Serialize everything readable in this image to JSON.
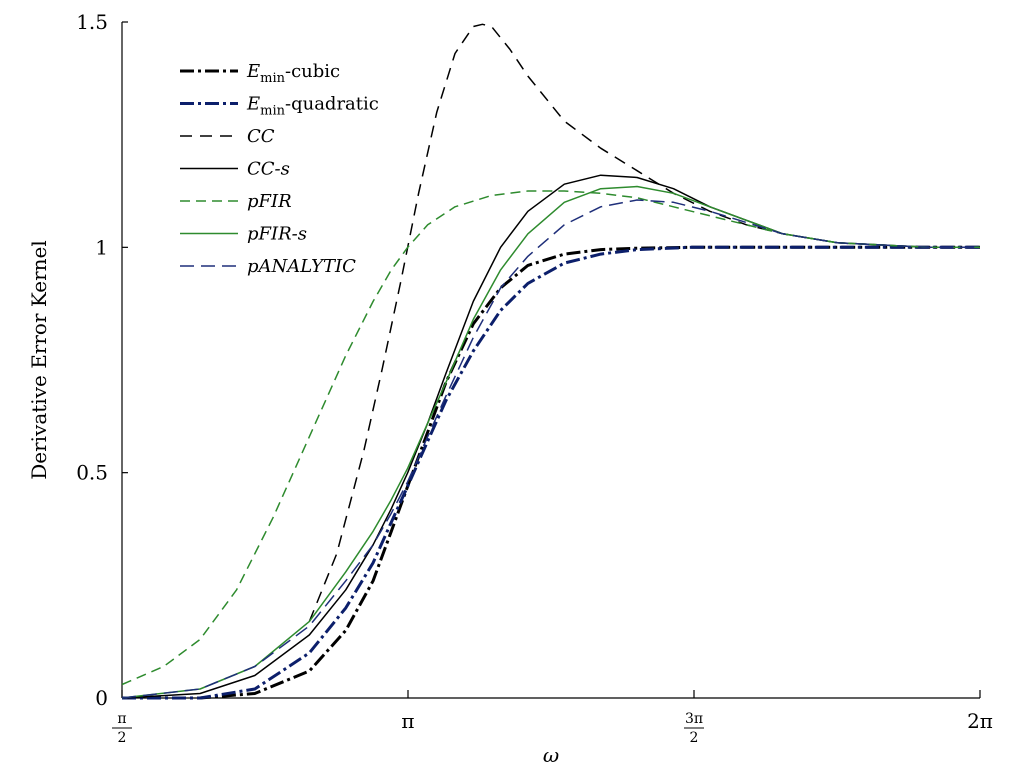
{
  "chart_data": {
    "type": "line",
    "xlabel": "ω",
    "ylabel": "Derivative Error Kernel",
    "xlim": [
      1.5708,
      6.2832
    ],
    "ylim": [
      0,
      1.5
    ],
    "grid": false,
    "legend_position": "top-left",
    "x_ticks": [
      {
        "value": 1.5708,
        "num": "π",
        "den": "2"
      },
      {
        "value": 3.1416,
        "label": "π"
      },
      {
        "value": 4.7124,
        "num": "3π",
        "den": "2"
      },
      {
        "value": 6.2832,
        "label": "2π"
      }
    ],
    "y_ticks": [
      {
        "value": 0,
        "label": "0"
      },
      {
        "value": 0.5,
        "label": "0.5"
      },
      {
        "value": 1,
        "label": "1"
      },
      {
        "value": 1.5,
        "label": "1.5"
      }
    ],
    "series": [
      {
        "name": "Emin-cubic",
        "legend": {
          "main": "E",
          "sub": "min",
          "suffix": "-cubic",
          "italic": false
        },
        "color": "#000000",
        "dash": "14,4,3,4",
        "width": 3,
        "x": [
          1.5708,
          2.0,
          2.3,
          2.6,
          2.8,
          2.95,
          3.05,
          3.14,
          3.25,
          3.35,
          3.5,
          3.65,
          3.8,
          4.0,
          4.2,
          4.4,
          4.7,
          5.0,
          5.5,
          6.0,
          6.2832
        ],
        "y": [
          0,
          0.0,
          0.01,
          0.06,
          0.15,
          0.26,
          0.37,
          0.47,
          0.59,
          0.7,
          0.83,
          0.91,
          0.96,
          0.985,
          0.995,
          0.998,
          1.0,
          1.0,
          1.0,
          1.0,
          1.0
        ]
      },
      {
        "name": "Emin-quadratic",
        "legend": {
          "main": "E",
          "sub": "min",
          "suffix": "-quadratic",
          "italic": false
        },
        "color": "#0c1f6b",
        "dash": "14,4,3,4",
        "width": 3,
        "x": [
          1.5708,
          2.0,
          2.3,
          2.6,
          2.8,
          2.95,
          3.05,
          3.14,
          3.25,
          3.35,
          3.5,
          3.65,
          3.8,
          4.0,
          4.2,
          4.4,
          4.7,
          5.0,
          5.5,
          6.0,
          6.2832
        ],
        "y": [
          0,
          0.0,
          0.02,
          0.1,
          0.2,
          0.3,
          0.39,
          0.47,
          0.57,
          0.66,
          0.77,
          0.86,
          0.92,
          0.965,
          0.985,
          0.995,
          1.0,
          1.0,
          1.0,
          1.0,
          1.0
        ]
      },
      {
        "name": "CC",
        "legend": {
          "main": "CC",
          "italic": true
        },
        "color": "#000000",
        "dash": "12,8",
        "width": 1.5,
        "x": [
          2.6,
          2.75,
          2.9,
          3.0,
          3.1,
          3.2,
          3.3,
          3.4,
          3.5,
          3.55,
          3.6,
          3.7,
          3.8,
          4.0,
          4.2,
          4.4,
          4.6,
          4.8,
          5.0,
          5.2,
          5.5,
          6.0,
          6.2832
        ],
        "y": [
          0.17,
          0.32,
          0.55,
          0.73,
          0.92,
          1.12,
          1.3,
          1.43,
          1.49,
          1.495,
          1.49,
          1.44,
          1.38,
          1.28,
          1.22,
          1.17,
          1.12,
          1.08,
          1.05,
          1.03,
          1.01,
          1.0,
          1.0
        ]
      },
      {
        "name": "CC-s",
        "legend": {
          "main": "CC-s",
          "italic": true
        },
        "color": "#000000",
        "dash": "",
        "width": 1.5,
        "x": [
          1.5708,
          2.0,
          2.3,
          2.6,
          2.8,
          2.95,
          3.05,
          3.14,
          3.25,
          3.35,
          3.5,
          3.65,
          3.8,
          4.0,
          4.2,
          4.4,
          4.6,
          4.8,
          5.0,
          5.2,
          5.5,
          6.0,
          6.2832
        ],
        "y": [
          0,
          0.01,
          0.05,
          0.14,
          0.24,
          0.34,
          0.42,
          0.5,
          0.61,
          0.72,
          0.88,
          1.0,
          1.08,
          1.14,
          1.16,
          1.155,
          1.13,
          1.09,
          1.06,
          1.03,
          1.01,
          1.0,
          1.0
        ]
      },
      {
        "name": "pFIR",
        "legend": {
          "main": "pFIR",
          "italic": true
        },
        "color": "#2e8b2e",
        "dash": "10,6",
        "width": 1.5,
        "x": [
          1.5708,
          1.8,
          2.0,
          2.2,
          2.4,
          2.6,
          2.8,
          2.95,
          3.05,
          3.14,
          3.25,
          3.4,
          3.6,
          3.8,
          4.0,
          4.2,
          4.4,
          4.6,
          4.8,
          5.0,
          5.2,
          5.5,
          6.0,
          6.2832
        ],
        "y": [
          0.03,
          0.07,
          0.13,
          0.24,
          0.4,
          0.58,
          0.76,
          0.88,
          0.95,
          1.0,
          1.05,
          1.09,
          1.115,
          1.125,
          1.125,
          1.12,
          1.11,
          1.09,
          1.07,
          1.05,
          1.03,
          1.01,
          1.0,
          1.0
        ]
      },
      {
        "name": "pFIR-s",
        "legend": {
          "main": "pFIR-s",
          "italic": true
        },
        "color": "#2e8b2e",
        "dash": "",
        "width": 1.5,
        "x": [
          1.5708,
          2.0,
          2.3,
          2.6,
          2.8,
          2.95,
          3.05,
          3.14,
          3.25,
          3.35,
          3.5,
          3.65,
          3.8,
          4.0,
          4.2,
          4.4,
          4.6,
          4.8,
          5.0,
          5.2,
          5.5,
          6.0,
          6.2832
        ],
        "y": [
          0,
          0.02,
          0.07,
          0.17,
          0.28,
          0.37,
          0.44,
          0.51,
          0.61,
          0.7,
          0.84,
          0.95,
          1.03,
          1.1,
          1.13,
          1.135,
          1.12,
          1.09,
          1.06,
          1.03,
          1.01,
          1.0,
          1.0
        ]
      },
      {
        "name": "pANALYTIC",
        "legend": {
          "main": "pANALYTIC",
          "italic": true
        },
        "color": "#1f2f7a",
        "dash": "14,7",
        "width": 1.5,
        "x": [
          1.5708,
          2.0,
          2.3,
          2.6,
          2.8,
          2.95,
          3.05,
          3.14,
          3.25,
          3.35,
          3.5,
          3.65,
          3.8,
          4.0,
          4.2,
          4.4,
          4.6,
          4.8,
          5.0,
          5.2,
          5.5,
          6.0,
          6.2832
        ],
        "y": [
          0,
          0.02,
          0.07,
          0.16,
          0.26,
          0.34,
          0.41,
          0.48,
          0.58,
          0.67,
          0.8,
          0.91,
          0.98,
          1.05,
          1.09,
          1.105,
          1.1,
          1.08,
          1.055,
          1.03,
          1.01,
          1.0,
          1.0
        ]
      }
    ]
  }
}
